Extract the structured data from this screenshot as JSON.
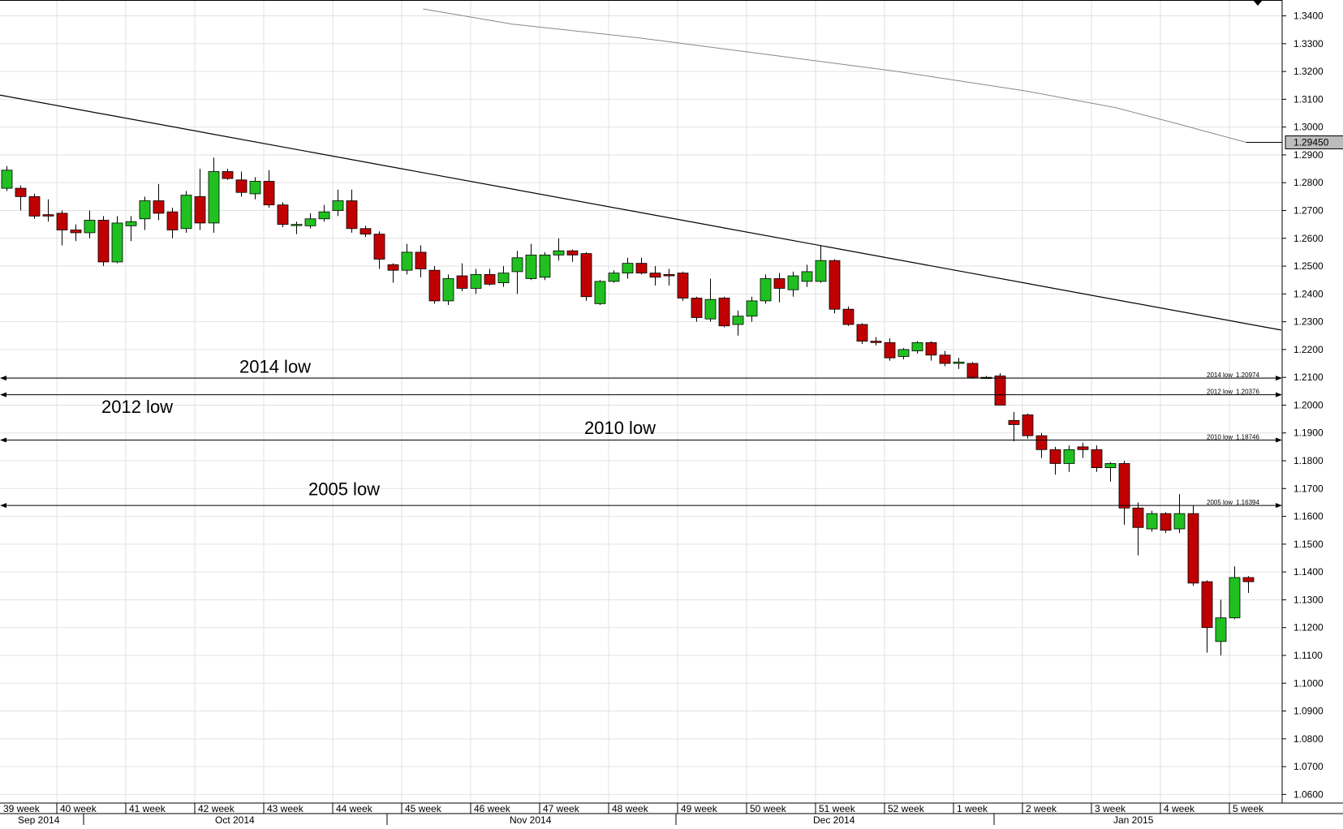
{
  "chart_data": {
    "type": "candlestick",
    "title": "",
    "xlabel": "",
    "ylabel": "",
    "ylim": [
      1.0569,
      1.3457
    ],
    "y_ticks": [
      "1.3400",
      "1.3300",
      "1.3200",
      "1.3100",
      "1.3000",
      "1.2900",
      "1.2800",
      "1.2700",
      "1.2600",
      "1.2500",
      "1.2400",
      "1.2300",
      "1.2200",
      "1.2100",
      "1.2000",
      "1.1900",
      "1.1800",
      "1.1700",
      "1.1600",
      "1.1500",
      "1.1400",
      "1.1300",
      "1.1200",
      "1.1100",
      "1.1000",
      "1.0900",
      "1.0800",
      "1.0700",
      "1.0600"
    ],
    "grid": true,
    "up_color": "#20c020",
    "down_color": "#c00000",
    "week_labels": [
      "39 week",
      "40 week",
      "41 week",
      "42 week",
      "43 week",
      "44 week",
      "45 week",
      "46 week",
      "47 week",
      "48 week",
      "49 week",
      "50 week",
      "51 week",
      "52 week",
      "1 week",
      "2 week",
      "3 week",
      "4 week",
      "5 week"
    ],
    "month_labels": [
      "Sep 2014",
      "Oct 2014",
      "Nov 2014",
      "Dec 2014",
      "Jan 2015"
    ],
    "current_price": "1.29450",
    "candles": [
      {
        "o": 1.278,
        "h": 1.286,
        "l": 1.277,
        "c": 1.2845
      },
      {
        "o": 1.278,
        "h": 1.279,
        "l": 1.27,
        "c": 1.275
      },
      {
        "o": 1.275,
        "h": 1.276,
        "l": 1.267,
        "c": 1.268
      },
      {
        "o": 1.2685,
        "h": 1.274,
        "l": 1.266,
        "c": 1.268
      },
      {
        "o": 1.269,
        "h": 1.27,
        "l": 1.2575,
        "c": 1.263
      },
      {
        "o": 1.263,
        "h": 1.265,
        "l": 1.259,
        "c": 1.262
      },
      {
        "o": 1.262,
        "h": 1.27,
        "l": 1.26,
        "c": 1.2665
      },
      {
        "o": 1.2665,
        "h": 1.268,
        "l": 1.25,
        "c": 1.2515
      },
      {
        "o": 1.2515,
        "h": 1.268,
        "l": 1.251,
        "c": 1.2655
      },
      {
        "o": 1.2645,
        "h": 1.268,
        "l": 1.259,
        "c": 1.266
      },
      {
        "o": 1.267,
        "h": 1.275,
        "l": 1.263,
        "c": 1.2735
      },
      {
        "o": 1.2735,
        "h": 1.2795,
        "l": 1.2665,
        "c": 1.269
      },
      {
        "o": 1.2695,
        "h": 1.271,
        "l": 1.26,
        "c": 1.263
      },
      {
        "o": 1.2635,
        "h": 1.277,
        "l": 1.262,
        "c": 1.2755
      },
      {
        "o": 1.275,
        "h": 1.285,
        "l": 1.263,
        "c": 1.2655
      },
      {
        "o": 1.2655,
        "h": 1.289,
        "l": 1.262,
        "c": 1.284
      },
      {
        "o": 1.284,
        "h": 1.285,
        "l": 1.281,
        "c": 1.2815
      },
      {
        "o": 1.281,
        "h": 1.284,
        "l": 1.275,
        "c": 1.2765
      },
      {
        "o": 1.276,
        "h": 1.282,
        "l": 1.274,
        "c": 1.2805
      },
      {
        "o": 1.2805,
        "h": 1.2845,
        "l": 1.271,
        "c": 1.272
      },
      {
        "o": 1.272,
        "h": 1.273,
        "l": 1.264,
        "c": 1.265
      },
      {
        "o": 1.265,
        "h": 1.266,
        "l": 1.2615,
        "c": 1.265
      },
      {
        "o": 1.2645,
        "h": 1.269,
        "l": 1.2635,
        "c": 1.267
      },
      {
        "o": 1.267,
        "h": 1.272,
        "l": 1.266,
        "c": 1.2695
      },
      {
        "o": 1.27,
        "h": 1.2775,
        "l": 1.268,
        "c": 1.2735
      },
      {
        "o": 1.2735,
        "h": 1.2775,
        "l": 1.262,
        "c": 1.2635
      },
      {
        "o": 1.2635,
        "h": 1.2645,
        "l": 1.2605,
        "c": 1.2615
      },
      {
        "o": 1.2615,
        "h": 1.2625,
        "l": 1.249,
        "c": 1.2525
      },
      {
        "o": 1.2505,
        "h": 1.251,
        "l": 1.244,
        "c": 1.2485
      },
      {
        "o": 1.2485,
        "h": 1.258,
        "l": 1.247,
        "c": 1.255
      },
      {
        "o": 1.255,
        "h": 1.2575,
        "l": 1.246,
        "c": 1.249
      },
      {
        "o": 1.2485,
        "h": 1.25,
        "l": 1.2365,
        "c": 1.2375
      },
      {
        "o": 1.2375,
        "h": 1.247,
        "l": 1.236,
        "c": 1.2455
      },
      {
        "o": 1.2465,
        "h": 1.251,
        "l": 1.241,
        "c": 1.242
      },
      {
        "o": 1.242,
        "h": 1.249,
        "l": 1.24,
        "c": 1.247
      },
      {
        "o": 1.247,
        "h": 1.249,
        "l": 1.243,
        "c": 1.2435
      },
      {
        "o": 1.244,
        "h": 1.25,
        "l": 1.2425,
        "c": 1.2475
      },
      {
        "o": 1.248,
        "h": 1.2555,
        "l": 1.24,
        "c": 1.253
      },
      {
        "o": 1.2455,
        "h": 1.258,
        "l": 1.245,
        "c": 1.254
      },
      {
        "o": 1.246,
        "h": 1.255,
        "l": 1.245,
        "c": 1.254
      },
      {
        "o": 1.254,
        "h": 1.26,
        "l": 1.252,
        "c": 1.2555
      },
      {
        "o": 1.2555,
        "h": 1.256,
        "l": 1.2515,
        "c": 1.254
      },
      {
        "o": 1.2545,
        "h": 1.255,
        "l": 1.2375,
        "c": 1.239
      },
      {
        "o": 1.2365,
        "h": 1.245,
        "l": 1.236,
        "c": 1.2445
      },
      {
        "o": 1.2445,
        "h": 1.2485,
        "l": 1.244,
        "c": 1.2475
      },
      {
        "o": 1.2475,
        "h": 1.253,
        "l": 1.2455,
        "c": 1.251
      },
      {
        "o": 1.251,
        "h": 1.253,
        "l": 1.247,
        "c": 1.2475
      },
      {
        "o": 1.2475,
        "h": 1.25,
        "l": 1.243,
        "c": 1.246
      },
      {
        "o": 1.247,
        "h": 1.249,
        "l": 1.243,
        "c": 1.2465
      },
      {
        "o": 1.2475,
        "h": 1.248,
        "l": 1.2375,
        "c": 1.2385
      },
      {
        "o": 1.2385,
        "h": 1.239,
        "l": 1.23,
        "c": 1.2315
      },
      {
        "o": 1.231,
        "h": 1.2455,
        "l": 1.23,
        "c": 1.238
      },
      {
        "o": 1.2385,
        "h": 1.239,
        "l": 1.228,
        "c": 1.2285
      },
      {
        "o": 1.229,
        "h": 1.234,
        "l": 1.225,
        "c": 1.232
      },
      {
        "o": 1.232,
        "h": 1.239,
        "l": 1.23,
        "c": 1.2375
      },
      {
        "o": 1.2375,
        "h": 1.247,
        "l": 1.2365,
        "c": 1.2455
      },
      {
        "o": 1.2455,
        "h": 1.2475,
        "l": 1.237,
        "c": 1.242
      },
      {
        "o": 1.2415,
        "h": 1.248,
        "l": 1.239,
        "c": 1.2465
      },
      {
        "o": 1.2445,
        "h": 1.2505,
        "l": 1.2425,
        "c": 1.248
      },
      {
        "o": 1.2445,
        "h": 1.2575,
        "l": 1.244,
        "c": 1.252
      },
      {
        "o": 1.252,
        "h": 1.2525,
        "l": 1.233,
        "c": 1.2345
      },
      {
        "o": 1.2345,
        "h": 1.2355,
        "l": 1.2285,
        "c": 1.229
      },
      {
        "o": 1.229,
        "h": 1.2295,
        "l": 1.222,
        "c": 1.223
      },
      {
        "o": 1.223,
        "h": 1.2245,
        "l": 1.2215,
        "c": 1.2225
      },
      {
        "o": 1.2225,
        "h": 1.224,
        "l": 1.216,
        "c": 1.217
      },
      {
        "o": 1.2175,
        "h": 1.2205,
        "l": 1.2165,
        "c": 1.22
      },
      {
        "o": 1.2195,
        "h": 1.223,
        "l": 1.2185,
        "c": 1.2225
      },
      {
        "o": 1.2225,
        "h": 1.223,
        "l": 1.216,
        "c": 1.218
      },
      {
        "o": 1.218,
        "h": 1.2195,
        "l": 1.214,
        "c": 1.215
      },
      {
        "o": 1.215,
        "h": 1.217,
        "l": 1.213,
        "c": 1.2155
      },
      {
        "o": 1.215,
        "h": 1.2155,
        "l": 1.2095,
        "c": 1.21
      },
      {
        "o": 1.21,
        "h": 1.2105,
        "l": 1.2095,
        "c": 1.21
      },
      {
        "o": 1.2105,
        "h": 1.2115,
        "l": 1.2,
        "c": 1.2
      },
      {
        "o": 1.1945,
        "h": 1.1975,
        "l": 1.187,
        "c": 1.193
      },
      {
        "o": 1.1965,
        "h": 1.197,
        "l": 1.188,
        "c": 1.189
      },
      {
        "o": 1.189,
        "h": 1.19,
        "l": 1.181,
        "c": 1.184
      },
      {
        "o": 1.184,
        "h": 1.185,
        "l": 1.175,
        "c": 1.179
      },
      {
        "o": 1.179,
        "h": 1.1855,
        "l": 1.176,
        "c": 1.184
      },
      {
        "o": 1.185,
        "h": 1.1865,
        "l": 1.181,
        "c": 1.184
      },
      {
        "o": 1.184,
        "h": 1.1855,
        "l": 1.176,
        "c": 1.1775
      },
      {
        "o": 1.1775,
        "h": 1.1795,
        "l": 1.1725,
        "c": 1.179
      },
      {
        "o": 1.179,
        "h": 1.18,
        "l": 1.157,
        "c": 1.163
      },
      {
        "o": 1.163,
        "h": 1.165,
        "l": 1.146,
        "c": 1.156
      },
      {
        "o": 1.1555,
        "h": 1.162,
        "l": 1.1545,
        "c": 1.161
      },
      {
        "o": 1.161,
        "h": 1.1615,
        "l": 1.154,
        "c": 1.155
      },
      {
        "o": 1.1555,
        "h": 1.168,
        "l": 1.154,
        "c": 1.161
      },
      {
        "o": 1.161,
        "h": 1.164,
        "l": 1.135,
        "c": 1.136
      },
      {
        "o": 1.1365,
        "h": 1.137,
        "l": 1.111,
        "c": 1.12
      },
      {
        "o": 1.115,
        "h": 1.13,
        "l": 1.11,
        "c": 1.1235
      },
      {
        "o": 1.1235,
        "h": 1.142,
        "l": 1.123,
        "c": 1.138
      },
      {
        "o": 1.138,
        "h": 1.1385,
        "l": 1.1325,
        "c": 1.1365
      }
    ],
    "upper_curve": [
      [
        0.33,
        1.3425
      ],
      [
        0.4,
        1.337
      ],
      [
        0.5,
        1.332
      ],
      [
        0.6,
        1.326
      ],
      [
        0.7,
        1.32
      ],
      [
        0.8,
        1.313
      ],
      [
        0.87,
        1.307
      ],
      [
        0.92,
        1.301
      ],
      [
        0.972,
        1.2945
      ]
    ],
    "trendline": [
      [
        0.0,
        1.3115
      ],
      [
        0.9993,
        1.227
      ]
    ],
    "levels": [
      {
        "name": "2014 low",
        "label": "2014 low",
        "value": 1.20974,
        "value_label": "1.20974"
      },
      {
        "name": "2012 low",
        "label": "2012 low",
        "value": 1.20376,
        "value_label": "1.20376"
      },
      {
        "name": "2010 low",
        "label": "2010 low",
        "value": 1.18746,
        "value_label": "1.18746"
      },
      {
        "name": "2005 low",
        "label": "2005 low",
        "value": 1.16394,
        "value_label": "1.16394"
      }
    ],
    "annotations": [
      {
        "name": "2014 low",
        "text": "2014 low",
        "x_week": "42 week",
        "price": 1.214
      },
      {
        "name": "2012 low",
        "text": "2012 low",
        "x_week": "40 week",
        "price": 1.1995
      },
      {
        "name": "2010 low",
        "text": "2010 low",
        "x_week": "47 week",
        "price": 1.192
      },
      {
        "name": "2005 low",
        "text": "2005 low",
        "x_week": "43 week",
        "price": 1.17
      }
    ]
  }
}
